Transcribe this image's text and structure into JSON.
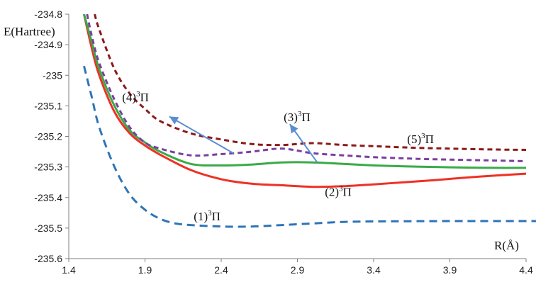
{
  "chart_data": {
    "type": "line",
    "title": "",
    "xlabel": "R(Å)",
    "ylabel": "E(Hartree)",
    "xlim": [
      1.4,
      4.4
    ],
    "ylim": [
      -235.6,
      -234.8
    ],
    "x_ticks": [
      "1.4",
      "1.9",
      "2.4",
      "2.9",
      "3.4",
      "3.9",
      "4.4"
    ],
    "y_ticks": [
      "-234.8",
      "-234.9",
      "-235",
      "-235.1",
      "-235.2",
      "-235.3",
      "-235.4",
      "-235.5",
      "-235.6"
    ],
    "grid": false,
    "colors": {
      "s1": "#2e75b6",
      "s2": "#ee3124",
      "s3": "#3aaa48",
      "s4": "#7a3fa0",
      "s5": "#8b1a1a",
      "arrow": "#5b8ed0",
      "axis": "#7f7f7f"
    },
    "series": [
      {
        "name": "(1)³Π",
        "style": "long-dash",
        "color_key": "s1",
        "x": [
          1.5,
          1.55,
          1.6,
          1.7,
          1.8,
          1.9,
          2.0,
          2.1,
          2.2,
          2.4,
          2.6,
          2.8,
          3.0,
          3.2,
          3.5,
          4.0,
          4.5
        ],
        "y": [
          -234.97,
          -235.07,
          -235.17,
          -235.3,
          -235.39,
          -235.44,
          -235.47,
          -235.485,
          -235.49,
          -235.495,
          -235.495,
          -235.49,
          -235.485,
          -235.48,
          -235.478,
          -235.477,
          -235.477
        ]
      },
      {
        "name": "(2)³Π",
        "style": "solid",
        "color_key": "s2",
        "x": [
          1.5,
          1.55,
          1.6,
          1.7,
          1.8,
          1.9,
          2.0,
          2.2,
          2.4,
          2.6,
          2.8,
          3.0,
          3.2,
          3.4,
          3.6,
          3.8,
          4.0,
          4.2,
          4.4
        ],
        "y": [
          -234.8,
          -234.91,
          -235.0,
          -235.12,
          -235.19,
          -235.23,
          -235.26,
          -235.31,
          -235.34,
          -235.355,
          -235.36,
          -235.365,
          -235.363,
          -235.357,
          -235.35,
          -235.343,
          -235.335,
          -235.328,
          -235.322
        ]
      },
      {
        "name": "(3)³Π",
        "style": "solid",
        "color_key": "s3",
        "x": [
          1.5,
          1.55,
          1.6,
          1.7,
          1.8,
          1.9,
          2.0,
          2.2,
          2.4,
          2.6,
          2.8,
          3.0,
          3.2,
          3.4,
          3.6,
          3.8,
          4.0,
          4.2,
          4.4
        ],
        "y": [
          -234.8,
          -234.89,
          -234.98,
          -235.1,
          -235.18,
          -235.22,
          -235.25,
          -235.29,
          -235.295,
          -235.292,
          -235.285,
          -235.285,
          -235.29,
          -235.295,
          -235.298,
          -235.3,
          -235.302,
          -235.303,
          -235.303
        ]
      },
      {
        "name": "(4)³Π",
        "style": "dash",
        "color_key": "s4",
        "x": [
          1.52,
          1.55,
          1.6,
          1.7,
          1.8,
          1.9,
          2.0,
          2.2,
          2.4,
          2.6,
          2.8,
          3.0,
          3.2,
          3.4,
          3.6,
          3.8,
          4.0,
          4.2,
          4.4
        ],
        "y": [
          -234.8,
          -234.87,
          -234.96,
          -235.08,
          -235.17,
          -235.22,
          -235.24,
          -235.262,
          -235.258,
          -235.25,
          -235.24,
          -235.255,
          -235.262,
          -235.268,
          -235.272,
          -235.275,
          -235.277,
          -235.279,
          -235.281
        ]
      },
      {
        "name": "(5)³Π",
        "style": "dash",
        "color_key": "s5",
        "x": [
          1.57,
          1.6,
          1.7,
          1.8,
          1.9,
          2.0,
          2.2,
          2.4,
          2.6,
          2.8,
          3.0,
          3.2,
          3.4,
          3.6,
          3.8,
          4.0,
          4.2,
          4.4
        ],
        "y": [
          -234.8,
          -234.85,
          -234.98,
          -235.06,
          -235.11,
          -235.15,
          -235.19,
          -235.21,
          -235.225,
          -235.228,
          -235.222,
          -235.228,
          -235.232,
          -235.236,
          -235.239,
          -235.241,
          -235.243,
          -235.244
        ]
      }
    ],
    "annotations": [
      {
        "base": "(1)",
        "sup": "3",
        "tail": "Π",
        "x": 2.22,
        "y": -235.475
      },
      {
        "base": "(2)",
        "sup": "3",
        "tail": "Π",
        "x": 3.08,
        "y": -235.395
      },
      {
        "base": "(3)",
        "sup": "3",
        "tail": "Π",
        "x": 2.81,
        "y": -235.15
      },
      {
        "base": "(4)",
        "sup": "3",
        "tail": "Π",
        "x": 1.75,
        "y": -235.085
      },
      {
        "base": "(5)",
        "sup": "3",
        "tail": "Π",
        "x": 3.62,
        "y": -235.222
      }
    ],
    "arrows": [
      {
        "from": [
          2.48,
          -235.255
        ],
        "to": [
          2.06,
          -235.135
        ]
      },
      {
        "from": [
          3.03,
          -235.285
        ],
        "to": [
          2.85,
          -235.16
        ]
      }
    ]
  }
}
